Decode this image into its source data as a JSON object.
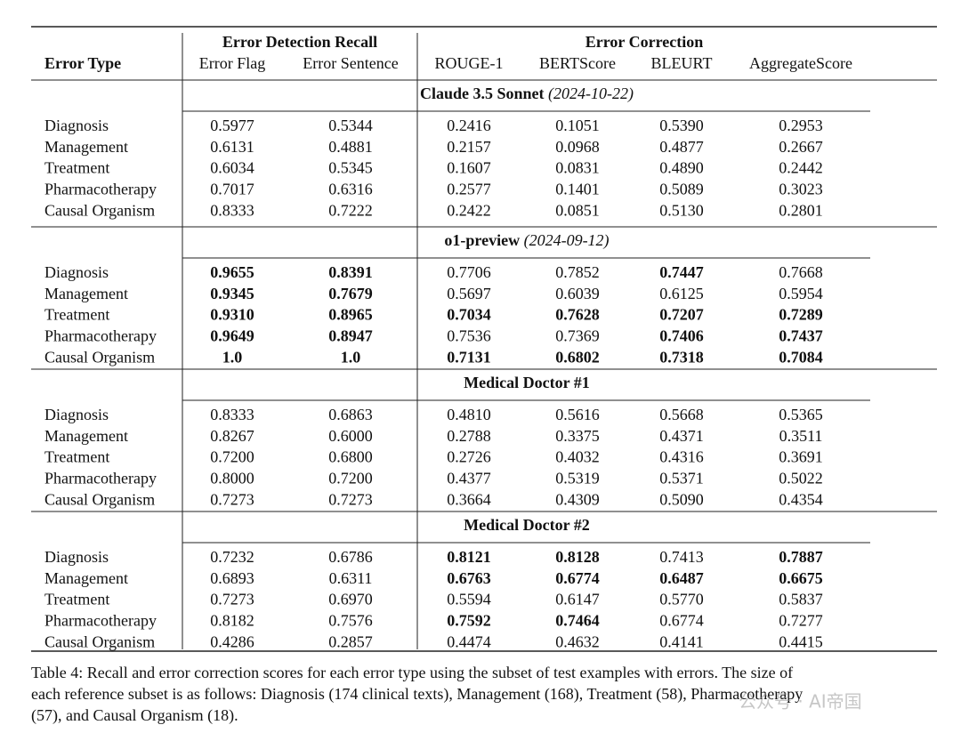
{
  "header": {
    "row_label": "Error Type",
    "groups": [
      "Error Detection Recall",
      "Error Correction"
    ],
    "columns": [
      "Error Flag",
      "Error Sentence",
      "ROUGE-1",
      "BERTScore",
      "BLEURT",
      "AggregateScore"
    ]
  },
  "sections": [
    {
      "model": "Claude 3.5 Sonnet",
      "date": "(2024-10-22)",
      "rows": [
        {
          "label": "Diagnosis",
          "values": [
            "0.5977",
            "0.5344",
            "0.2416",
            "0.1051",
            "0.5390",
            "0.2953"
          ],
          "bold": []
        },
        {
          "label": "Management",
          "values": [
            "0.6131",
            "0.4881",
            "0.2157",
            "0.0968",
            "0.4877",
            "0.2667"
          ],
          "bold": []
        },
        {
          "label": "Treatment",
          "values": [
            "0.6034",
            "0.5345",
            "0.1607",
            "0.0831",
            "0.4890",
            "0.2442"
          ],
          "bold": []
        },
        {
          "label": "Pharmacotherapy",
          "values": [
            "0.7017",
            "0.6316",
            "0.2577",
            "0.1401",
            "0.5089",
            "0.3023"
          ],
          "bold": []
        },
        {
          "label": "Causal Organism",
          "values": [
            "0.8333",
            "0.7222",
            "0.2422",
            "0.0851",
            "0.5130",
            "0.2801"
          ],
          "bold": []
        }
      ]
    },
    {
      "model": "o1-preview",
      "date": "(2024-09-12)",
      "rows": [
        {
          "label": "Diagnosis",
          "values": [
            "0.9655",
            "0.8391",
            "0.7706",
            "0.7852",
            "0.7447",
            "0.7668"
          ],
          "bold": [
            0,
            1,
            4
          ]
        },
        {
          "label": "Management",
          "values": [
            "0.9345",
            "0.7679",
            "0.5697",
            "0.6039",
            "0.6125",
            "0.5954"
          ],
          "bold": [
            0,
            1
          ]
        },
        {
          "label": "Treatment",
          "values": [
            "0.9310",
            "0.8965",
            "0.7034",
            "0.7628",
            "0.7207",
            "0.7289"
          ],
          "bold": [
            0,
            1,
            2,
            3,
            4,
            5
          ]
        },
        {
          "label": "Pharmacotherapy",
          "values": [
            "0.9649",
            "0.8947",
            "0.7536",
            "0.7369",
            "0.7406",
            "0.7437"
          ],
          "bold": [
            0,
            1,
            4,
            5
          ]
        },
        {
          "label": "Causal Organism",
          "values": [
            "1.0",
            "1.0",
            "0.7131",
            "0.6802",
            "0.7318",
            "0.7084"
          ],
          "bold": [
            0,
            1,
            2,
            3,
            4,
            5
          ]
        }
      ]
    },
    {
      "model": "Medical Doctor #1",
      "date": null,
      "rows": [
        {
          "label": "Diagnosis",
          "values": [
            "0.8333",
            "0.6863",
            "0.4810",
            "0.5616",
            "0.5668",
            "0.5365"
          ],
          "bold": []
        },
        {
          "label": "Management",
          "values": [
            "0.8267",
            "0.6000",
            "0.2788",
            "0.3375",
            "0.4371",
            "0.3511"
          ],
          "bold": []
        },
        {
          "label": "Treatment",
          "values": [
            "0.7200",
            "0.6800",
            "0.2726",
            "0.4032",
            "0.4316",
            "0.3691"
          ],
          "bold": []
        },
        {
          "label": "Pharmacotherapy",
          "values": [
            "0.8000",
            "0.7200",
            "0.4377",
            "0.5319",
            "0.5371",
            "0.5022"
          ],
          "bold": []
        },
        {
          "label": "Causal Organism",
          "values": [
            "0.7273",
            "0.7273",
            "0.3664",
            "0.4309",
            "0.5090",
            "0.4354"
          ],
          "bold": []
        }
      ]
    },
    {
      "model": "Medical Doctor #2",
      "date": null,
      "rows": [
        {
          "label": "Diagnosis",
          "values": [
            "0.7232",
            "0.6786",
            "0.8121",
            "0.8128",
            "0.7413",
            "0.7887"
          ],
          "bold": [
            2,
            3,
            5
          ]
        },
        {
          "label": "Management",
          "values": [
            "0.6893",
            "0.6311",
            "0.6763",
            "0.6774",
            "0.6487",
            "0.6675"
          ],
          "bold": [
            2,
            3,
            4,
            5
          ]
        },
        {
          "label": "Treatment",
          "values": [
            "0.7273",
            "0.6970",
            "0.5594",
            "0.6147",
            "0.5770",
            "0.5837"
          ],
          "bold": []
        },
        {
          "label": "Pharmacotherapy",
          "values": [
            "0.8182",
            "0.7576",
            "0.7592",
            "0.7464",
            "0.6774",
            "0.7277"
          ],
          "bold": [
            2,
            3
          ]
        },
        {
          "label": "Causal Organism",
          "values": [
            "0.4286",
            "0.2857",
            "0.4474",
            "0.4632",
            "0.4141",
            "0.4415"
          ],
          "bold": []
        }
      ]
    }
  ],
  "caption": [
    "Table 4: Recall and error correction scores for each error type using the subset of test examples with errors. The size of",
    "each reference subset is as follows: Diagnosis (174 clinical texts), Management (168), Treatment (58), Pharmacotherapy",
    "(57), and Causal Organism (18)."
  ],
  "watermark": "公众号 · AI帝国"
}
